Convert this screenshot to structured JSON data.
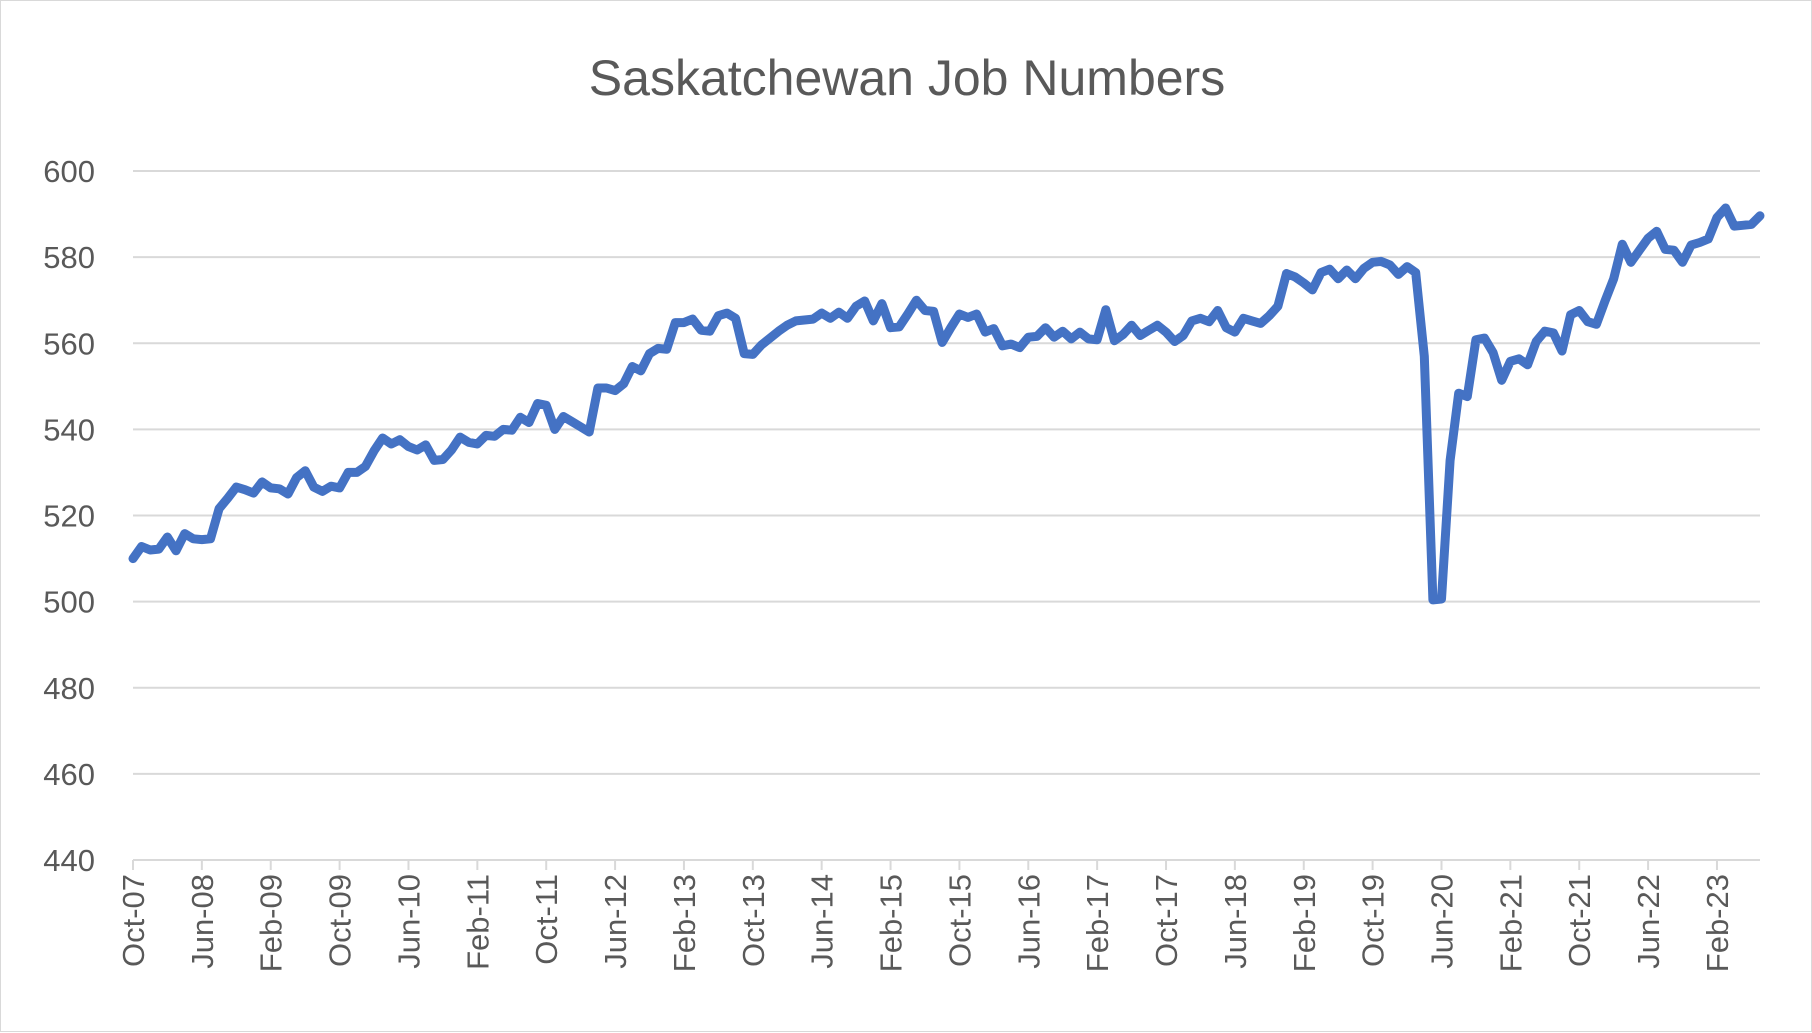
{
  "chart_data": {
    "type": "line",
    "title": "Saskatchewan Job Numbers",
    "xlabel": "",
    "ylabel": "",
    "ylim": [
      440,
      600
    ],
    "yticks": [
      440,
      460,
      480,
      500,
      520,
      540,
      560,
      580,
      600
    ],
    "x_tick_labels": [
      "Oct-07",
      "Jun-08",
      "Feb-09",
      "Oct-09",
      "Jun-10",
      "Feb-11",
      "Oct-11",
      "Jun-12",
      "Feb-13",
      "Oct-13",
      "Jun-14",
      "Feb-15",
      "Oct-15",
      "Jun-16",
      "Feb-17",
      "Oct-17",
      "Jun-18",
      "Feb-19",
      "Oct-19",
      "Jun-20",
      "Feb-21",
      "Oct-21",
      "Jun-22",
      "Feb-23"
    ],
    "grid": true,
    "legend": "none",
    "series_color": "#4472c4",
    "x_start": "Oct-07",
    "x_end": "Jul-23",
    "values": [
      510.0,
      512.8,
      512.0,
      512.2,
      515.0,
      511.8,
      515.8,
      514.6,
      514.4,
      514.6,
      521.6,
      524.0,
      526.6,
      526.0,
      525.2,
      527.8,
      526.4,
      526.2,
      525.0,
      528.8,
      530.4,
      526.6,
      525.6,
      526.8,
      526.4,
      530.0,
      530.0,
      531.4,
      535.0,
      538.0,
      536.6,
      537.6,
      536.0,
      535.2,
      536.4,
      532.8,
      533.0,
      535.2,
      538.2,
      537.0,
      536.6,
      538.6,
      538.4,
      540.0,
      539.8,
      542.8,
      541.6,
      546.0,
      545.6,
      540.0,
      543.0,
      541.8,
      540.6,
      539.4,
      549.6,
      549.6,
      549.0,
      550.6,
      554.6,
      553.6,
      557.6,
      558.8,
      558.6,
      564.8,
      564.8,
      565.6,
      563.0,
      562.8,
      566.4,
      567.0,
      565.8,
      557.6,
      557.4,
      559.6,
      561.2,
      562.8,
      564.2,
      565.2,
      565.4,
      565.6,
      567.0,
      565.8,
      567.2,
      565.8,
      568.6,
      569.8,
      565.2,
      569.2,
      563.6,
      563.8,
      566.8,
      570.0,
      567.6,
      567.4,
      560.2,
      563.6,
      566.8,
      566.0,
      566.8,
      562.6,
      563.4,
      559.4,
      559.8,
      559.0,
      561.4,
      561.6,
      563.6,
      561.4,
      562.8,
      561.0,
      562.6,
      561.0,
      560.8,
      567.8,
      560.6,
      562.0,
      564.2,
      561.8,
      563.0,
      564.2,
      562.6,
      560.4,
      561.8,
      565.2,
      565.8,
      565.0,
      567.6,
      563.6,
      562.6,
      565.8,
      565.2,
      564.6,
      566.4,
      568.6,
      576.2,
      575.4,
      574.0,
      572.4,
      576.4,
      577.2,
      575.0,
      577.0,
      575.0,
      577.4,
      578.8,
      579.0,
      578.2,
      576.0,
      577.8,
      576.4,
      557.0,
      500.4,
      500.6,
      532.8,
      548.4,
      547.6,
      560.8,
      561.2,
      557.8,
      551.4,
      555.8,
      556.4,
      555.0,
      560.4,
      562.8,
      562.4,
      558.2,
      566.6,
      567.6,
      565.0,
      564.4,
      569.8,
      575.0,
      583.0,
      578.8,
      581.6,
      584.4,
      586.0,
      581.8,
      581.6,
      578.8,
      582.8,
      583.4,
      584.2,
      589.2,
      591.4,
      587.2,
      587.4,
      587.6,
      589.6
    ]
  }
}
